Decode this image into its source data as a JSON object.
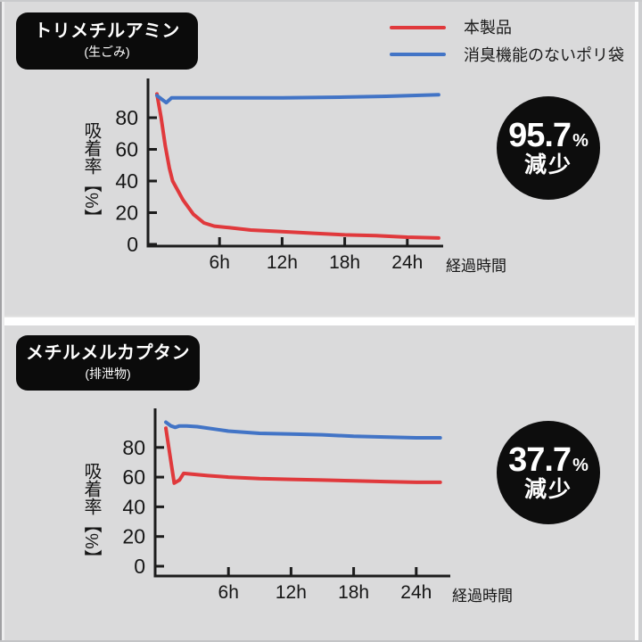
{
  "page": {
    "background": "#dadadb",
    "divider_color": "#ffffff"
  },
  "legend": {
    "items": [
      {
        "key": "product",
        "label": "本製品",
        "color": "#e0393c"
      },
      {
        "key": "plain-bag",
        "label": "消臭機能のないポリ袋",
        "color": "#4274c6"
      }
    ]
  },
  "chart_data": [
    {
      "type": "line",
      "title": "トリメチルアミン",
      "subtitle": "(生ごみ)",
      "ylabel": "吸着率【%】",
      "xlabel": "経過時間",
      "ylim": [
        0,
        100
      ],
      "yticks": [
        0,
        20,
        40,
        60,
        80
      ],
      "xticks": [
        {
          "t": 6,
          "label": "6h"
        },
        {
          "t": 12,
          "label": "12h"
        },
        {
          "t": 18,
          "label": "18h"
        },
        {
          "t": 24,
          "label": "24h"
        }
      ],
      "axis_color": "#1c1c1c",
      "grid": false,
      "badge": {
        "value": "95.7",
        "unit": "%",
        "label": "減少"
      },
      "series": [
        {
          "key": "product",
          "name": "本製品",
          "color": "#e0393c",
          "points": [
            [
              0,
              95
            ],
            [
              0.4,
              80
            ],
            [
              0.8,
              62
            ],
            [
              1.2,
              48
            ],
            [
              1.5,
              40
            ],
            [
              2.5,
              28
            ],
            [
              3.5,
              19
            ],
            [
              4.5,
              13.5
            ],
            [
              5.5,
              11.5
            ],
            [
              7,
              10.5
            ],
            [
              9,
              9
            ],
            [
              12,
              8
            ],
            [
              15,
              7
            ],
            [
              18,
              6
            ],
            [
              21,
              5.5
            ],
            [
              24,
              4.5
            ],
            [
              27,
              4
            ]
          ]
        },
        {
          "key": "plain-bag",
          "name": "消臭機能のないポリ袋",
          "color": "#4274c6",
          "points": [
            [
              0,
              94
            ],
            [
              0.5,
              91.5
            ],
            [
              0.9,
              89.5
            ],
            [
              1.4,
              92.5
            ],
            [
              3,
              92.5
            ],
            [
              6,
              92.5
            ],
            [
              12,
              92.5
            ],
            [
              18,
              93
            ],
            [
              22,
              93.5
            ],
            [
              27,
              94.5
            ]
          ]
        }
      ]
    },
    {
      "type": "line",
      "title": "メチルメルカプタン",
      "subtitle": "(排泄物)",
      "ylabel": "吸着率【%】",
      "xlabel": "経過時間",
      "ylim": [
        0,
        100
      ],
      "yticks": [
        0,
        20,
        40,
        60,
        80
      ],
      "xticks": [
        {
          "t": 6,
          "label": "6h"
        },
        {
          "t": 12,
          "label": "12h"
        },
        {
          "t": 18,
          "label": "18h"
        },
        {
          "t": 24,
          "label": "24h"
        }
      ],
      "axis_color": "#1c1c1c",
      "grid": false,
      "badge": {
        "value": "37.7",
        "unit": "%",
        "label": "減少"
      },
      "series": [
        {
          "key": "product",
          "name": "本製品",
          "color": "#e0393c",
          "points": [
            [
              0,
              93
            ],
            [
              0.5,
              70
            ],
            [
              0.8,
              56
            ],
            [
              1.3,
              58
            ],
            [
              1.7,
              62.5
            ],
            [
              2.5,
              62
            ],
            [
              4,
              61
            ],
            [
              6,
              60
            ],
            [
              9,
              59
            ],
            [
              12,
              58.5
            ],
            [
              15,
              58
            ],
            [
              18,
              57.5
            ],
            [
              21,
              57
            ],
            [
              24,
              56.5
            ],
            [
              26.3,
              56.5
            ]
          ]
        },
        {
          "key": "plain-bag",
          "name": "消臭機能のないポリ袋",
          "color": "#4274c6",
          "points": [
            [
              0,
              97
            ],
            [
              0.5,
              94.5
            ],
            [
              0.9,
              93.5
            ],
            [
              1.3,
              94.5
            ],
            [
              2,
              94.5
            ],
            [
              3,
              94
            ],
            [
              5,
              92
            ],
            [
              6,
              91
            ],
            [
              9,
              89.5
            ],
            [
              12,
              89
            ],
            [
              15,
              88.5
            ],
            [
              18,
              87.5
            ],
            [
              21,
              87
            ],
            [
              24,
              86.5
            ],
            [
              26.3,
              86.5
            ]
          ]
        }
      ]
    }
  ]
}
